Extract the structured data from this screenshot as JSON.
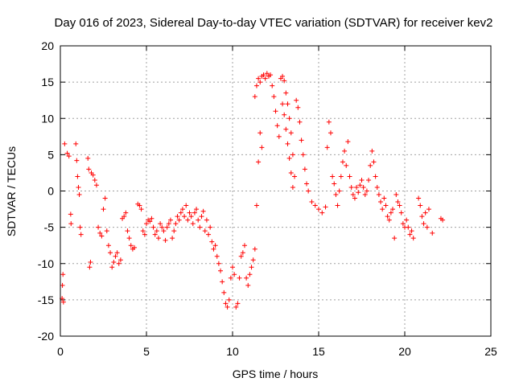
{
  "chart_data": {
    "type": "scatter",
    "title": "Day 016 of 2023, Sidereal Day-to-day VTEC variation (SDTVAR) for receiver kev2",
    "xlabel": "GPS time / hours",
    "ylabel": "SDTVAR / TECUs",
    "xlim": [
      0,
      25
    ],
    "ylim": [
      -20,
      20
    ],
    "xticks": [
      0,
      5,
      10,
      15,
      20,
      25
    ],
    "yticks": [
      -20,
      -15,
      -10,
      -5,
      0,
      5,
      10,
      15,
      20
    ],
    "xtick_labels": [
      "0",
      "5",
      "10",
      "15",
      "20",
      "25"
    ],
    "ytick_labels": [
      "-20",
      "-15",
      "-10",
      "-5",
      "0",
      "5",
      "10",
      "15",
      "20"
    ],
    "grid": true,
    "marker": "+",
    "color": "#ff0000",
    "series": [
      {
        "name": "kev2 SDTVAR",
        "points": [
          [
            0.1,
            -14.8
          ],
          [
            0.12,
            -13.0
          ],
          [
            0.15,
            -11.5
          ],
          [
            0.18,
            -15.3
          ],
          [
            0.25,
            6.5
          ],
          [
            0.4,
            5.2
          ],
          [
            0.5,
            4.8
          ],
          [
            0.6,
            -3.2
          ],
          [
            0.62,
            -4.5
          ],
          [
            0.9,
            6.5
          ],
          [
            0.95,
            4.2
          ],
          [
            1.0,
            2.0
          ],
          [
            1.05,
            0.5
          ],
          [
            1.1,
            -0.5
          ],
          [
            1.15,
            -5.0
          ],
          [
            1.2,
            -6.0
          ],
          [
            1.6,
            4.5
          ],
          [
            1.65,
            3.0
          ],
          [
            1.7,
            -10.5
          ],
          [
            1.75,
            -9.8
          ],
          [
            1.8,
            2.5
          ],
          [
            1.9,
            2.2
          ],
          [
            2.0,
            1.5
          ],
          [
            2.1,
            0.8
          ],
          [
            2.2,
            -5.0
          ],
          [
            2.3,
            -5.8
          ],
          [
            2.4,
            -6.2
          ],
          [
            2.5,
            -2.5
          ],
          [
            2.6,
            -1.0
          ],
          [
            2.7,
            -5.5
          ],
          [
            2.8,
            -7.5
          ],
          [
            2.9,
            -8.5
          ],
          [
            3.0,
            -10.5
          ],
          [
            3.1,
            -9.8
          ],
          [
            3.2,
            -9.0
          ],
          [
            3.3,
            -8.5
          ],
          [
            3.4,
            -10.0
          ],
          [
            3.5,
            -9.5
          ],
          [
            3.6,
            -3.8
          ],
          [
            3.7,
            -3.5
          ],
          [
            3.8,
            -3.0
          ],
          [
            3.9,
            -5.5
          ],
          [
            4.0,
            -6.5
          ],
          [
            4.1,
            -7.5
          ],
          [
            4.2,
            -8.0
          ],
          [
            4.3,
            -7.8
          ],
          [
            4.5,
            -1.8
          ],
          [
            4.6,
            -2.0
          ],
          [
            4.7,
            -2.5
          ],
          [
            4.8,
            -5.5
          ],
          [
            4.9,
            -6.0
          ],
          [
            5.0,
            -4.5
          ],
          [
            5.1,
            -4.0
          ],
          [
            5.2,
            -4.2
          ],
          [
            5.3,
            -3.8
          ],
          [
            5.4,
            -5.0
          ],
          [
            5.5,
            -6.0
          ],
          [
            5.6,
            -5.5
          ],
          [
            5.7,
            -6.5
          ],
          [
            5.8,
            -4.5
          ],
          [
            5.9,
            -5.0
          ],
          [
            6.0,
            -5.5
          ],
          [
            6.1,
            -6.8
          ],
          [
            6.2,
            -5.0
          ],
          [
            6.3,
            -4.5
          ],
          [
            6.4,
            -4.0
          ],
          [
            6.5,
            -6.5
          ],
          [
            6.6,
            -5.5
          ],
          [
            6.7,
            -4.5
          ],
          [
            6.8,
            -3.5
          ],
          [
            6.9,
            -4.0
          ],
          [
            7.0,
            -3.0
          ],
          [
            7.1,
            -2.5
          ],
          [
            7.2,
            -3.5
          ],
          [
            7.3,
            -2.0
          ],
          [
            7.4,
            -4.0
          ],
          [
            7.5,
            -3.0
          ],
          [
            7.6,
            -3.5
          ],
          [
            7.7,
            -4.5
          ],
          [
            7.8,
            -3.0
          ],
          [
            7.9,
            -2.5
          ],
          [
            8.0,
            -4.0
          ],
          [
            8.1,
            -5.0
          ],
          [
            8.2,
            -3.5
          ],
          [
            8.3,
            -2.8
          ],
          [
            8.4,
            -5.5
          ],
          [
            8.5,
            -4.0
          ],
          [
            8.6,
            -6.0
          ],
          [
            8.7,
            -5.0
          ],
          [
            8.8,
            -7.0
          ],
          [
            8.9,
            -8.0
          ],
          [
            9.0,
            -7.5
          ],
          [
            9.1,
            -9.0
          ],
          [
            9.2,
            -10.0
          ],
          [
            9.3,
            -11.0
          ],
          [
            9.4,
            -12.5
          ],
          [
            9.5,
            -14.0
          ],
          [
            9.6,
            -15.5
          ],
          [
            9.7,
            -16.0
          ],
          [
            9.8,
            -15.0
          ],
          [
            9.9,
            -12.0
          ],
          [
            10.0,
            -10.5
          ],
          [
            10.1,
            -11.5
          ],
          [
            10.2,
            -16.0
          ],
          [
            10.3,
            -15.5
          ],
          [
            10.4,
            -12.0
          ],
          [
            10.5,
            -9.0
          ],
          [
            10.6,
            -8.5
          ],
          [
            10.7,
            -7.5
          ],
          [
            10.8,
            -12.0
          ],
          [
            10.9,
            -13.0
          ],
          [
            11.0,
            -11.5
          ],
          [
            11.1,
            -10.5
          ],
          [
            11.2,
            -9.5
          ],
          [
            11.3,
            -8.0
          ],
          [
            11.4,
            -2.0
          ],
          [
            11.5,
            4.0
          ],
          [
            11.6,
            8.0
          ],
          [
            11.7,
            6.0
          ],
          [
            11.3,
            13.0
          ],
          [
            11.4,
            14.5
          ],
          [
            11.5,
            15.5
          ],
          [
            11.6,
            15.0
          ],
          [
            11.7,
            15.8
          ],
          [
            11.8,
            16.0
          ],
          [
            11.9,
            15.5
          ],
          [
            12.0,
            16.2
          ],
          [
            12.1,
            15.8
          ],
          [
            12.2,
            16.0
          ],
          [
            12.3,
            14.5
          ],
          [
            12.4,
            13.0
          ],
          [
            12.5,
            11.0
          ],
          [
            12.6,
            9.0
          ],
          [
            12.7,
            7.5
          ],
          [
            12.8,
            15.5
          ],
          [
            12.9,
            15.8
          ],
          [
            13.0,
            15.2
          ],
          [
            13.1,
            13.5
          ],
          [
            13.2,
            12.0
          ],
          [
            13.3,
            10.0
          ],
          [
            13.4,
            8.0
          ],
          [
            13.5,
            5.0
          ],
          [
            13.6,
            2.0
          ],
          [
            13.7,
            12.5
          ],
          [
            13.8,
            11.5
          ],
          [
            13.9,
            9.5
          ],
          [
            14.0,
            7.0
          ],
          [
            14.1,
            5.0
          ],
          [
            14.2,
            3.0
          ],
          [
            14.3,
            1.0
          ],
          [
            14.4,
            0.0
          ],
          [
            12.9,
            12.0
          ],
          [
            13.0,
            10.5
          ],
          [
            13.1,
            8.5
          ],
          [
            13.2,
            6.5
          ],
          [
            13.3,
            4.5
          ],
          [
            13.4,
            2.5
          ],
          [
            13.5,
            0.5
          ],
          [
            14.6,
            -1.5
          ],
          [
            14.8,
            -2.0
          ],
          [
            15.0,
            -2.5
          ],
          [
            15.2,
            -3.0
          ],
          [
            15.4,
            -2.2
          ],
          [
            15.5,
            6.0
          ],
          [
            15.6,
            9.5
          ],
          [
            15.7,
            8.0
          ],
          [
            15.8,
            2.0
          ],
          [
            15.9,
            1.0
          ],
          [
            16.0,
            -0.5
          ],
          [
            16.1,
            -2.0
          ],
          [
            16.2,
            0.0
          ],
          [
            16.3,
            2.0
          ],
          [
            16.4,
            4.0
          ],
          [
            16.5,
            5.5
          ],
          [
            16.6,
            3.5
          ],
          [
            16.7,
            6.8
          ],
          [
            16.8,
            2.0
          ],
          [
            16.9,
            0.5
          ],
          [
            17.0,
            -0.5
          ],
          [
            17.1,
            -1.0
          ],
          [
            17.2,
            0.5
          ],
          [
            17.3,
            -0.2
          ],
          [
            17.4,
            0.8
          ],
          [
            17.5,
            1.5
          ],
          [
            17.6,
            0.5
          ],
          [
            17.7,
            -0.5
          ],
          [
            17.8,
            0.0
          ],
          [
            17.9,
            1.5
          ],
          [
            18.0,
            3.5
          ],
          [
            18.1,
            5.5
          ],
          [
            18.2,
            4.0
          ],
          [
            18.3,
            2.0
          ],
          [
            18.4,
            0.5
          ],
          [
            18.5,
            -0.5
          ],
          [
            18.6,
            -1.5
          ],
          [
            18.7,
            -2.5
          ],
          [
            18.8,
            -1.0
          ],
          [
            18.9,
            -2.0
          ],
          [
            19.0,
            -3.5
          ],
          [
            19.1,
            -4.0
          ],
          [
            19.2,
            -3.0
          ],
          [
            19.3,
            -2.5
          ],
          [
            19.4,
            -6.5
          ],
          [
            19.5,
            -0.5
          ],
          [
            19.6,
            -1.5
          ],
          [
            19.7,
            -2.0
          ],
          [
            19.8,
            -3.0
          ],
          [
            19.9,
            -4.5
          ],
          [
            20.0,
            -5.0
          ],
          [
            20.1,
            -4.0
          ],
          [
            20.2,
            -5.0
          ],
          [
            20.3,
            -6.0
          ],
          [
            20.4,
            -5.5
          ],
          [
            20.5,
            -6.5
          ],
          [
            20.8,
            -1.0
          ],
          [
            20.9,
            -2.0
          ],
          [
            21.0,
            -3.5
          ],
          [
            21.1,
            -4.5
          ],
          [
            21.2,
            -3.0
          ],
          [
            21.3,
            -5.0
          ],
          [
            21.4,
            -2.5
          ],
          [
            21.6,
            -5.8
          ],
          [
            22.1,
            -3.8
          ],
          [
            22.2,
            -4.0
          ]
        ]
      }
    ]
  }
}
